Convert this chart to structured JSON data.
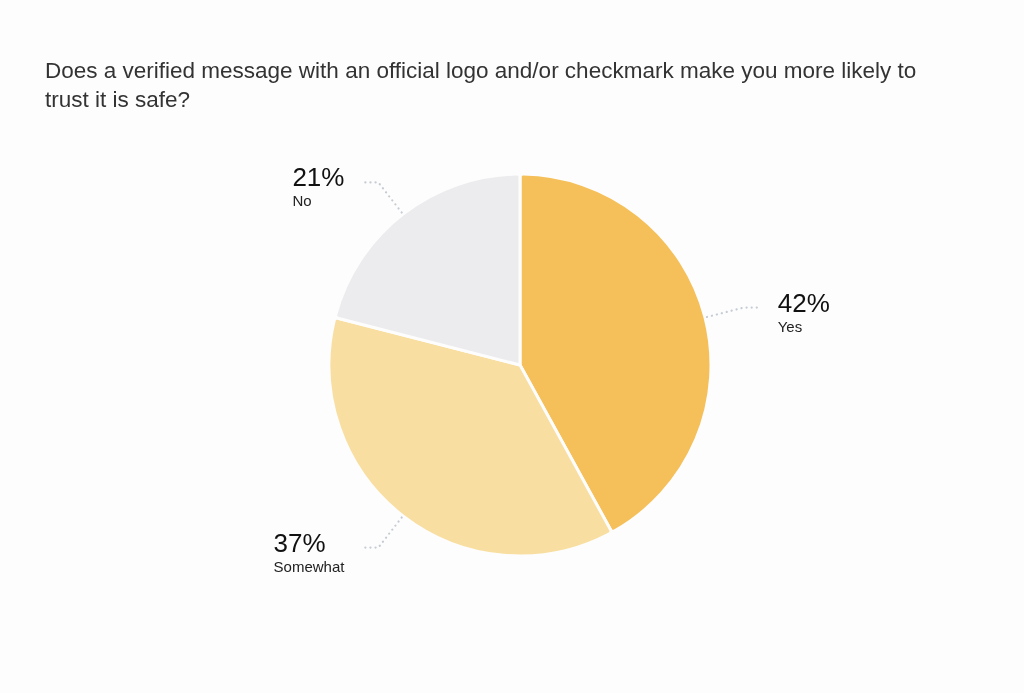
{
  "chart_data": {
    "type": "pie",
    "title": "Does a verified message with an official logo and/or checkmark make you more likely to trust it is safe?",
    "categories": [
      "Yes",
      "Somewhat",
      "No"
    ],
    "values": [
      42,
      37,
      21
    ],
    "colors": [
      "#f5c059",
      "#f8dea0",
      "#ececee"
    ],
    "value_labels": [
      "42%",
      "37%",
      "21%"
    ]
  }
}
